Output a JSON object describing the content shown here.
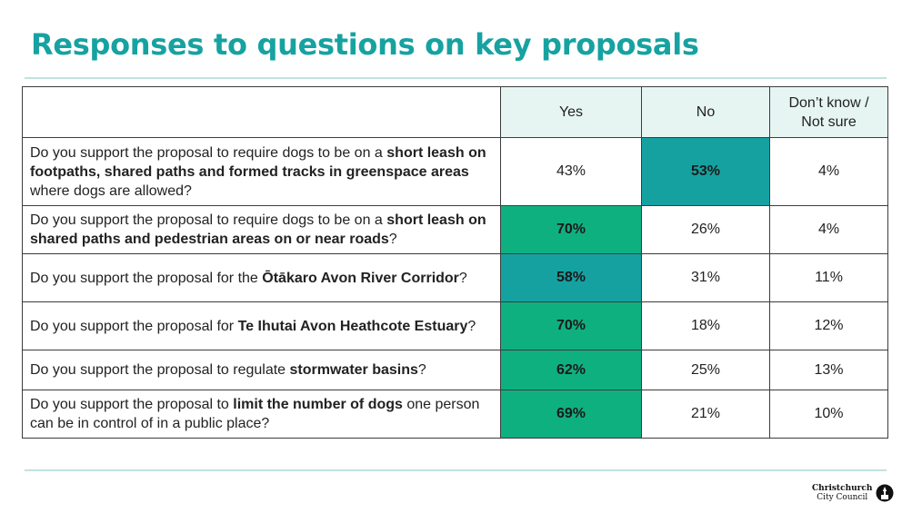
{
  "slide": {
    "title": "Responses to questions on key proposals"
  },
  "table": {
    "headers": [
      "",
      "Yes",
      "No",
      "Don’t know / Not sure"
    ],
    "rows": [
      {
        "q_parts": [
          {
            "text": "Do you support the proposal to require dogs to be on a ",
            "bold": false
          },
          {
            "text": "short leash on footpaths, shared paths and formed tracks in greenspace areas",
            "bold": true
          },
          {
            "text": " where dogs are allowed?",
            "bold": false
          }
        ],
        "yes": "43%",
        "no": "53%",
        "dontknow": "4%",
        "highlight": "no",
        "highlight_color": "#16a1a1"
      },
      {
        "q_parts": [
          {
            "text": "Do you support the proposal to require dogs to be on a ",
            "bold": false
          },
          {
            "text": "short leash on shared paths and pedestrian areas on or near roads",
            "bold": true
          },
          {
            "text": "?",
            "bold": false
          }
        ],
        "yes": "70%",
        "no": "26%",
        "dontknow": "4%",
        "highlight": "yes",
        "highlight_color": "#0fb080"
      },
      {
        "q_parts": [
          {
            "text": "Do you support the proposal for the ",
            "bold": false
          },
          {
            "text": "Ōtākaro Avon River Corridor",
            "bold": true
          },
          {
            "text": "?",
            "bold": false
          }
        ],
        "yes": "58%",
        "no": "31%",
        "dontknow": "11%",
        "highlight": "yes",
        "highlight_color": "#16a1a1"
      },
      {
        "q_parts": [
          {
            "text": "Do you support the proposal for ",
            "bold": false
          },
          {
            "text": "Te Ihutai Avon Heathcote Estuary",
            "bold": true
          },
          {
            "text": "?",
            "bold": false
          }
        ],
        "yes": "70%",
        "no": "18%",
        "dontknow": "12%",
        "highlight": "yes",
        "highlight_color": "#0fb080"
      },
      {
        "q_parts": [
          {
            "text": "Do you support the proposal to regulate ",
            "bold": false
          },
          {
            "text": "stormwater basins",
            "bold": true
          },
          {
            "text": "?",
            "bold": false
          }
        ],
        "yes": "62%",
        "no": "25%",
        "dontknow": "13%",
        "highlight": "yes",
        "highlight_color": "#0fb080"
      },
      {
        "q_parts": [
          {
            "text": "Do you support the proposal to ",
            "bold": false
          },
          {
            "text": "limit the number of dogs",
            "bold": true
          },
          {
            "text": " one person can be in control of in a public place?",
            "bold": false
          }
        ],
        "yes": "69%",
        "no": "21%",
        "dontknow": "10%",
        "highlight": "yes",
        "highlight_color": "#0fb080"
      }
    ]
  },
  "footer": {
    "logo_line1": "Christchurch",
    "logo_line2": "City Council",
    "logo_icon": "cathedral-roundel-icon"
  }
}
